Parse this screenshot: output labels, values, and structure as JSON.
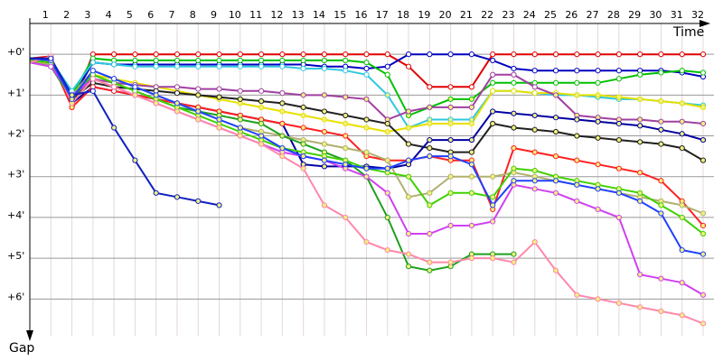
{
  "chart_data": {
    "type": "line",
    "x_label": "Time",
    "y_label": "Gap",
    "x": [
      0,
      1,
      2,
      3,
      4,
      5,
      6,
      7,
      8,
      9,
      10,
      11,
      12,
      13,
      14,
      15,
      16,
      17,
      18,
      19,
      20,
      21,
      22,
      23,
      24,
      25,
      26,
      27,
      28,
      29,
      30,
      31,
      32
    ],
    "xlim": [
      0,
      32
    ],
    "xticks": [
      1,
      2,
      3,
      4,
      5,
      6,
      7,
      8,
      9,
      10,
      11,
      12,
      13,
      14,
      15,
      16,
      17,
      18,
      19,
      20,
      21,
      22,
      23,
      24,
      25,
      26,
      27,
      28,
      29,
      30,
      31,
      32
    ],
    "ylim": [
      -0.8,
      6.9
    ],
    "y_inverted": true,
    "grid": true,
    "yticks": [
      {
        "value": 0,
        "label": "+0'"
      },
      {
        "value": 1,
        "label": "+1'"
      },
      {
        "value": 2,
        "label": "+2'"
      },
      {
        "value": 3,
        "label": "+3'"
      },
      {
        "value": 4,
        "label": "+4'"
      },
      {
        "value": 5,
        "label": "+5'"
      },
      {
        "value": 6,
        "label": "+6'"
      }
    ],
    "series": [
      {
        "color": "#e00000",
        "values": [
          0.1,
          0.05,
          1.3,
          0,
          0,
          0,
          0,
          0,
          0,
          0,
          0,
          0,
          0,
          0,
          0,
          0,
          0,
          0,
          0.3,
          0.8,
          0.8,
          0.8,
          0,
          0,
          0,
          0,
          0,
          0,
          0,
          0,
          0,
          0,
          0
        ]
      },
      {
        "color": "#0000c0",
        "values": [
          0.1,
          0.1,
          1.1,
          0.2,
          0.25,
          0.25,
          0.25,
          0.25,
          0.25,
          0.25,
          0.25,
          0.25,
          0.25,
          0.25,
          0.3,
          0.3,
          0.35,
          0.3,
          0,
          0,
          0,
          0,
          0.15,
          0.35,
          0.4,
          0.4,
          0.4,
          0.4,
          0.4,
          0.4,
          0.4,
          0.45,
          0.55
        ]
      },
      {
        "color": "#00c000",
        "values": [
          0.15,
          0.1,
          1.0,
          0.1,
          0.15,
          0.15,
          0.15,
          0.15,
          0.15,
          0.15,
          0.15,
          0.15,
          0.15,
          0.15,
          0.15,
          0.15,
          0.2,
          0.5,
          1.5,
          1.3,
          1.1,
          1.1,
          0.7,
          0.7,
          0.7,
          0.7,
          0.7,
          0.7,
          0.6,
          0.5,
          0.45,
          0.4,
          0.45
        ]
      },
      {
        "color": "#30c8e0",
        "values": [
          0.15,
          0.15,
          0.9,
          0.2,
          0.25,
          0.3,
          0.3,
          0.3,
          0.3,
          0.3,
          0.3,
          0.3,
          0.3,
          0.35,
          0.35,
          0.4,
          0.5,
          1.0,
          1.8,
          1.6,
          1.6,
          1.6,
          0.9,
          0.9,
          0.95,
          1.0,
          1.0,
          1.05,
          1.1,
          1.1,
          1.15,
          1.2,
          1.25
        ]
      },
      {
        "color": "#e8e000",
        "values": [
          0.2,
          0.2,
          1.2,
          0.5,
          0.6,
          0.7,
          0.8,
          0.9,
          1.0,
          1.1,
          1.2,
          1.3,
          1.4,
          1.5,
          1.6,
          1.7,
          1.8,
          1.9,
          1.8,
          1.7,
          1.7,
          1.7,
          0.9,
          0.9,
          0.95,
          0.95,
          1.0,
          1.0,
          1.05,
          1.1,
          1.15,
          1.2,
          1.3
        ]
      },
      {
        "color": "#a040a0",
        "values": [
          0.2,
          0.3,
          1.1,
          0.6,
          0.7,
          0.75,
          0.8,
          0.8,
          0.85,
          0.85,
          0.9,
          0.9,
          0.95,
          1.0,
          1.0,
          1.05,
          1.1,
          1.6,
          1.4,
          1.3,
          1.3,
          1.3,
          0.5,
          0.5,
          0.8,
          1.0,
          1.5,
          1.55,
          1.6,
          1.6,
          1.65,
          1.65,
          1.7
        ]
      },
      {
        "color": "#202020",
        "values": [
          0.1,
          0.1,
          1.1,
          0.7,
          0.8,
          0.85,
          0.9,
          0.95,
          1.0,
          1.05,
          1.1,
          1.15,
          1.2,
          1.3,
          1.4,
          1.5,
          1.6,
          1.7,
          2.2,
          2.3,
          2.4,
          2.4,
          1.7,
          1.8,
          1.85,
          1.9,
          2.0,
          2.05,
          2.1,
          2.15,
          2.2,
          2.3,
          2.6
        ]
      },
      {
        "color": "#0000a0",
        "values": [
          0.15,
          0.2,
          1.2,
          0.8,
          0.9,
          1.0,
          1.1,
          1.2,
          1.3,
          1.4,
          1.5,
          1.6,
          1.7,
          2.7,
          2.75,
          2.75,
          2.75,
          2.8,
          2.7,
          2.1,
          2.1,
          2.1,
          1.4,
          1.45,
          1.5,
          1.55,
          1.6,
          1.65,
          1.7,
          1.75,
          1.85,
          1.95,
          2.1
        ]
      },
      {
        "color": "#ff2020",
        "values": [
          0.1,
          0.15,
          1.3,
          0.8,
          0.9,
          1.0,
          1.1,
          1.2,
          1.3,
          1.4,
          1.5,
          1.6,
          1.7,
          1.8,
          1.9,
          2.0,
          2.5,
          2.6,
          2.6,
          2.5,
          2.6,
          2.6,
          3.8,
          2.3,
          2.4,
          2.5,
          2.6,
          2.7,
          2.8,
          2.9,
          3.1,
          3.6,
          4.2
        ]
      },
      {
        "color": "#b0b070",
        "values": [
          0.2,
          0.25,
          1.0,
          0.4,
          0.6,
          0.8,
          1.0,
          1.2,
          1.4,
          1.6,
          1.8,
          1.9,
          2.0,
          2.1,
          2.2,
          2.3,
          2.4,
          2.6,
          3.5,
          3.4,
          3.0,
          3.0,
          3.0,
          2.9,
          3.0,
          3.1,
          3.2,
          3.3,
          3.4,
          3.5,
          3.6,
          3.7,
          3.9
        ]
      },
      {
        "color": "#20a020",
        "values": [
          0.2,
          0.3,
          1.1,
          0.5,
          0.7,
          0.9,
          1.1,
          1.3,
          1.4,
          1.5,
          1.6,
          1.7,
          2.0,
          2.2,
          2.4,
          2.6,
          3.0,
          4.0,
          5.2,
          5.3,
          5.2,
          4.9,
          4.9,
          4.9,
          null,
          null,
          null,
          null,
          null,
          null,
          null,
          null,
          null
        ]
      },
      {
        "color": "#40d000",
        "values": [
          0.15,
          0.2,
          1.0,
          0.5,
          0.7,
          0.9,
          1.1,
          1.3,
          1.5,
          1.7,
          1.9,
          2.1,
          2.3,
          2.4,
          2.5,
          2.6,
          2.8,
          2.9,
          3.0,
          3.7,
          3.4,
          3.4,
          3.5,
          2.8,
          2.85,
          3.0,
          3.1,
          3.2,
          3.3,
          3.4,
          3.7,
          4.0,
          4.4
        ]
      },
      {
        "color": "#d040f0",
        "values": [
          0.2,
          0.3,
          1.0,
          0.6,
          0.8,
          1.0,
          1.2,
          1.4,
          1.6,
          1.8,
          2.0,
          2.2,
          2.4,
          2.5,
          2.6,
          2.8,
          3.0,
          3.4,
          4.4,
          4.4,
          4.2,
          4.2,
          4.1,
          3.2,
          3.3,
          3.4,
          3.6,
          3.8,
          4.0,
          5.4,
          5.5,
          5.6,
          5.9
        ]
      },
      {
        "color": "#ff88aa",
        "values": [
          0.2,
          0.05,
          1.2,
          0.6,
          0.8,
          1.0,
          1.2,
          1.4,
          1.6,
          1.8,
          2.0,
          2.2,
          2.5,
          2.8,
          3.7,
          4.0,
          4.6,
          4.8,
          4.9,
          5.1,
          5.1,
          5.0,
          5.0,
          5.1,
          4.6,
          5.3,
          5.9,
          6.0,
          6.1,
          6.2,
          6.3,
          6.4,
          6.6
        ]
      },
      {
        "color": "#2040ff",
        "values": [
          0.1,
          0.15,
          1.1,
          0.4,
          0.6,
          0.8,
          1.0,
          1.2,
          1.4,
          1.6,
          1.8,
          2.0,
          2.3,
          2.5,
          2.6,
          2.7,
          2.8,
          2.8,
          2.6,
          2.5,
          2.5,
          2.7,
          3.7,
          3.1,
          3.1,
          3.1,
          3.2,
          3.3,
          3.4,
          3.6,
          3.9,
          4.8,
          4.9
        ]
      },
      {
        "color": "#1020c0",
        "values": [
          0.1,
          0.1,
          1.0,
          0.9,
          1.8,
          2.6,
          3.4,
          3.5,
          3.6,
          3.7,
          null,
          null,
          null,
          null,
          null,
          null,
          null,
          null,
          null,
          null,
          null,
          null,
          null,
          null,
          null,
          null,
          null,
          null,
          null,
          null,
          null,
          null,
          null
        ]
      }
    ]
  }
}
